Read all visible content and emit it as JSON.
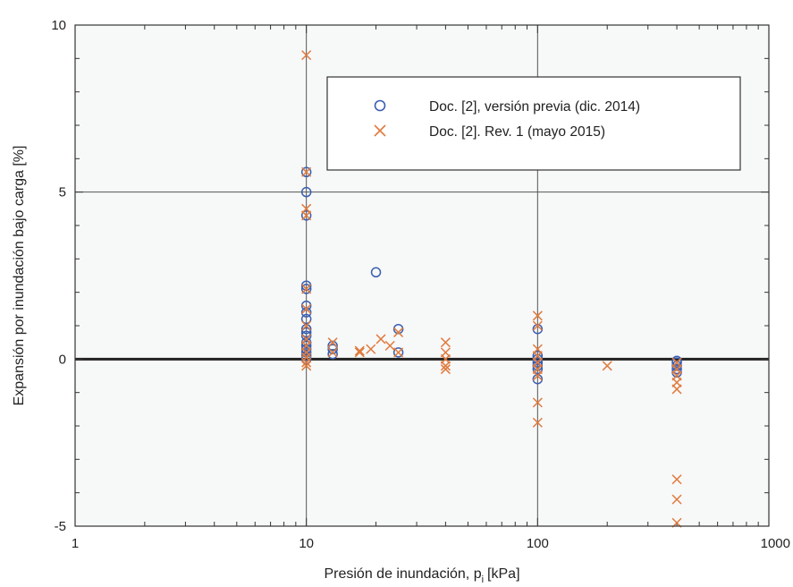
{
  "chart_data": {
    "type": "scatter",
    "xscale": "log",
    "xlim": [
      1,
      1000
    ],
    "ylim": [
      -5,
      10
    ],
    "grid": "major",
    "legend_position": "top-right",
    "xlabel": "Presión de inundación, p",
    "xlabel_sub": "i",
    "xlabel_unit": "[kPa]",
    "ylabel": "Expansión por inundación bajo carga [%]",
    "x_ticks": [
      {
        "value": 1,
        "label": "1"
      },
      {
        "value": 10,
        "label": "10"
      },
      {
        "value": 100,
        "label": "100"
      },
      {
        "value": 1000,
        "label": "1000"
      }
    ],
    "y_ticks": [
      {
        "value": -5,
        "label": "-5"
      },
      {
        "value": 0,
        "label": "0"
      },
      {
        "value": 5,
        "label": "5"
      },
      {
        "value": 10,
        "label": "10"
      }
    ],
    "reference_line": {
      "y": 0
    },
    "series": [
      {
        "name": "Doc. [2], versión previa (dic. 2014)",
        "marker": "circle",
        "color": "#3a5fb0",
        "points": [
          [
            10,
            5.6
          ],
          [
            10,
            5.0
          ],
          [
            10,
            4.3
          ],
          [
            10,
            2.2
          ],
          [
            10,
            2.1
          ],
          [
            10,
            1.6
          ],
          [
            10,
            1.4
          ],
          [
            10,
            1.2
          ],
          [
            10,
            0.9
          ],
          [
            10,
            0.8
          ],
          [
            10,
            0.7
          ],
          [
            10,
            0.5
          ],
          [
            10,
            0.4
          ],
          [
            10,
            0.3
          ],
          [
            10,
            0.2
          ],
          [
            10,
            0.1
          ],
          [
            10,
            0.0
          ],
          [
            13,
            0.4
          ],
          [
            13,
            0.3
          ],
          [
            13,
            0.15
          ],
          [
            20,
            2.6
          ],
          [
            25,
            0.9
          ],
          [
            25,
            0.2
          ],
          [
            100,
            0.9
          ],
          [
            100,
            0.1
          ],
          [
            100,
            0.0
          ],
          [
            100,
            -0.1
          ],
          [
            100,
            -0.2
          ],
          [
            100,
            -0.3
          ],
          [
            100,
            -0.6
          ],
          [
            400,
            -0.05
          ],
          [
            400,
            -0.1
          ],
          [
            400,
            -0.2
          ],
          [
            400,
            -0.3
          ],
          [
            400,
            -0.4
          ]
        ]
      },
      {
        "name": "Doc. [2]. Rev. 1 (mayo 2015)",
        "marker": "x",
        "color": "#e07a3c",
        "points": [
          [
            10,
            9.1
          ],
          [
            10,
            5.6
          ],
          [
            10,
            4.5
          ],
          [
            10,
            4.3
          ],
          [
            10,
            2.1
          ],
          [
            10,
            1.5
          ],
          [
            10,
            1.0
          ],
          [
            10,
            0.6
          ],
          [
            10,
            0.4
          ],
          [
            10,
            0.2
          ],
          [
            10,
            0.05
          ],
          [
            10,
            -0.1
          ],
          [
            10,
            -0.2
          ],
          [
            13,
            0.5
          ],
          [
            13,
            0.2
          ],
          [
            17,
            0.25
          ],
          [
            17,
            0.2
          ],
          [
            19,
            0.3
          ],
          [
            21,
            0.6
          ],
          [
            23,
            0.4
          ],
          [
            25,
            0.8
          ],
          [
            25,
            0.2
          ],
          [
            40,
            0.5
          ],
          [
            40,
            0.2
          ],
          [
            40,
            0.0
          ],
          [
            40,
            -0.2
          ],
          [
            40,
            -0.3
          ],
          [
            100,
            1.3
          ],
          [
            100,
            1.0
          ],
          [
            100,
            0.3
          ],
          [
            100,
            0.1
          ],
          [
            100,
            -0.1
          ],
          [
            100,
            -0.3
          ],
          [
            100,
            -0.5
          ],
          [
            100,
            -1.3
          ],
          [
            100,
            -1.9
          ],
          [
            200,
            -0.2
          ],
          [
            400,
            -0.1
          ],
          [
            400,
            -0.3
          ],
          [
            400,
            -0.5
          ],
          [
            400,
            -0.7
          ],
          [
            400,
            -0.9
          ],
          [
            400,
            -3.6
          ],
          [
            400,
            -4.2
          ],
          [
            400,
            -4.9
          ]
        ]
      }
    ]
  }
}
